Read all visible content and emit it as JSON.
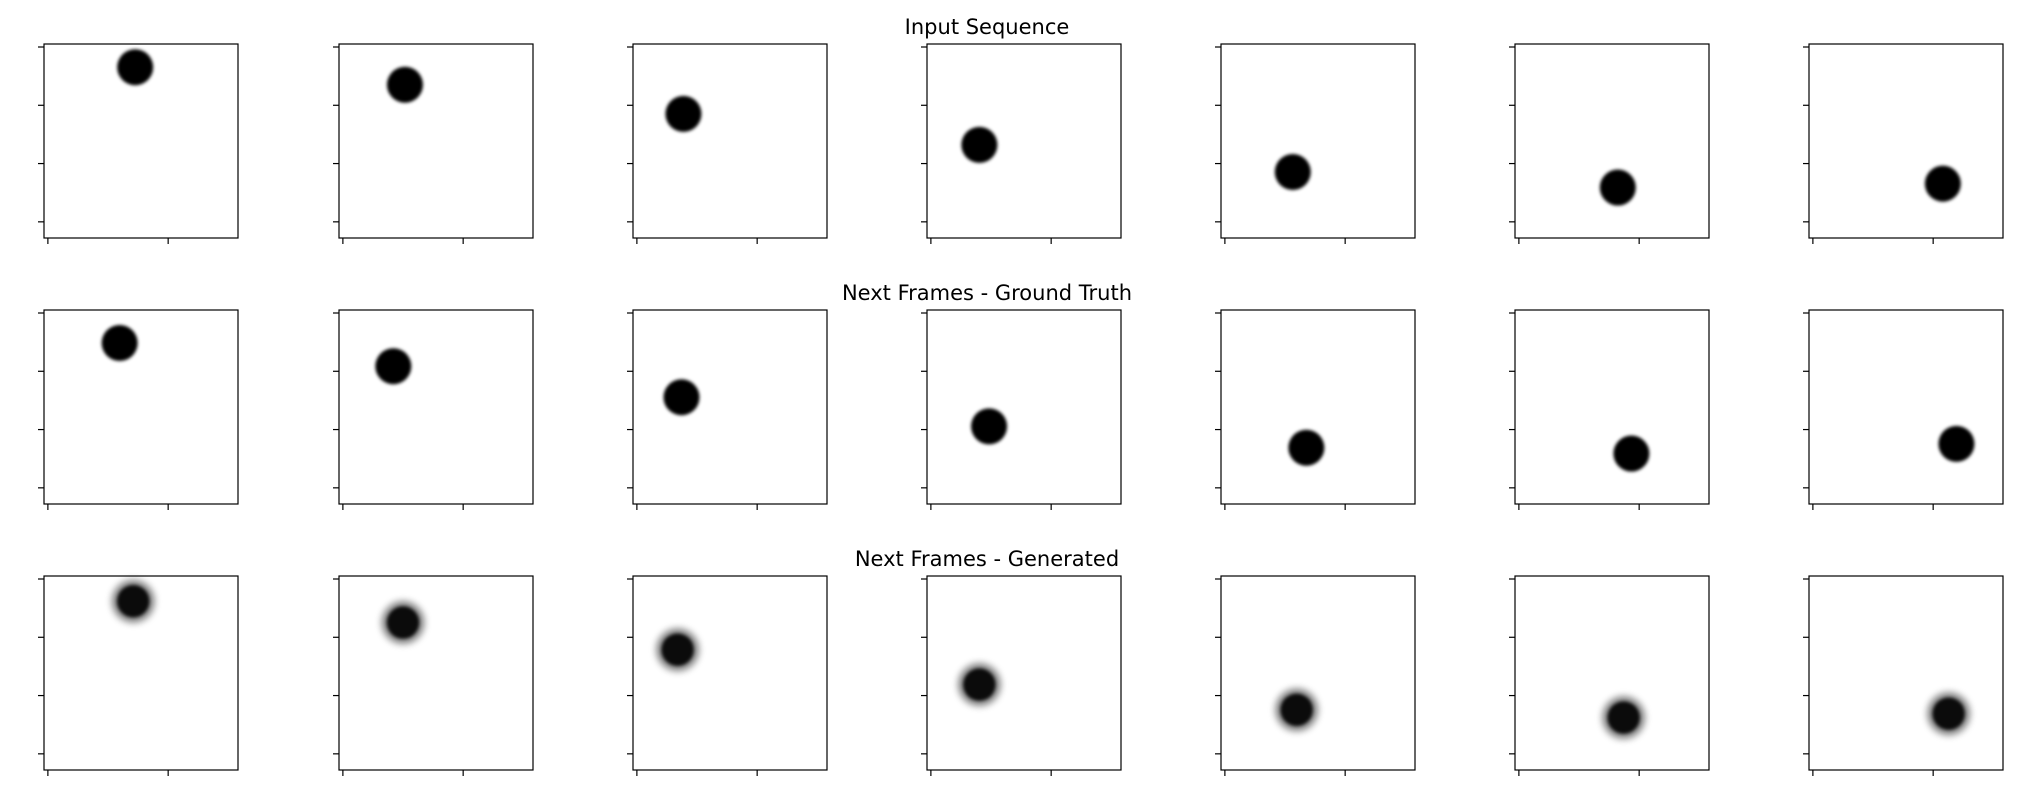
{
  "chart_data": {
    "type": "image-grid",
    "rows": [
      {
        "title": "Input Sequence",
        "ball": "sharp",
        "ball_centers": [
          [
            0.47,
            0.12
          ],
          [
            0.34,
            0.21
          ],
          [
            0.26,
            0.36
          ],
          [
            0.27,
            0.52
          ],
          [
            0.37,
            0.66
          ],
          [
            0.53,
            0.74
          ],
          [
            0.69,
            0.72
          ]
        ]
      },
      {
        "title": "Next Frames - Ground Truth",
        "ball": "sharp",
        "ball_centers": [
          [
            0.39,
            0.17
          ],
          [
            0.28,
            0.29
          ],
          [
            0.25,
            0.45
          ],
          [
            0.32,
            0.6
          ],
          [
            0.44,
            0.71
          ],
          [
            0.6,
            0.74
          ],
          [
            0.76,
            0.69
          ]
        ]
      },
      {
        "title": "Next Frames - Generated",
        "ball": "blurred",
        "ball_centers": [
          [
            0.46,
            0.13
          ],
          [
            0.33,
            0.24
          ],
          [
            0.23,
            0.38
          ],
          [
            0.27,
            0.56
          ],
          [
            0.39,
            0.69
          ],
          [
            0.56,
            0.73
          ],
          [
            0.72,
            0.71
          ]
        ]
      }
    ],
    "colors": {
      "ball": "#000000",
      "background": "#ffffff",
      "frame": "#000000"
    }
  }
}
